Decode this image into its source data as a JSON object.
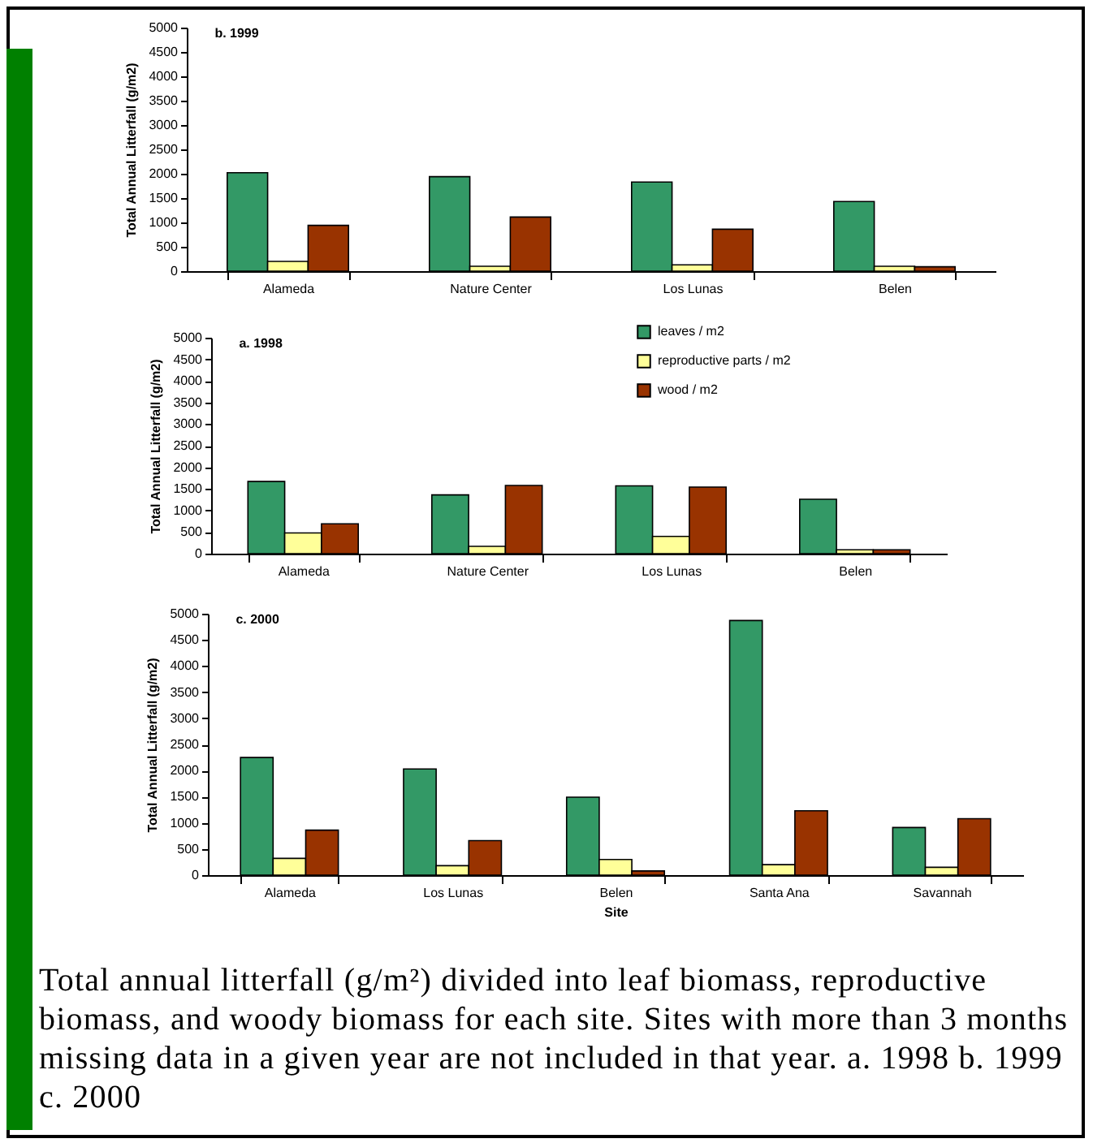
{
  "chart_data": [
    {
      "type": "bar",
      "title": "b.  1999",
      "ylabel": "Total Annual Litterfall (g/m2)",
      "categories": [
        "Alameda",
        "Nature Center",
        "Los Lunas",
        "Belen"
      ],
      "series": [
        {
          "color": "#339966",
          "values": [
            2020,
            1940,
            1830,
            1430
          ]
        },
        {
          "color": "#ffff99",
          "values": [
            200,
            100,
            130,
            100
          ]
        },
        {
          "color": "#993300",
          "values": [
            940,
            1110,
            860,
            90
          ]
        }
      ],
      "ylim": [
        0,
        5000
      ],
      "yticks": [
        0,
        500,
        1000,
        1500,
        2000,
        2500,
        3000,
        3500,
        4000,
        4500,
        5000
      ],
      "grid": false,
      "legend": false
    },
    {
      "type": "bar",
      "title": "a.  1998",
      "ylabel": "Total Annual Litterfall (g/m2)",
      "categories": [
        "Alameda",
        "Nature Center",
        "Los Lunas",
        "Belen"
      ],
      "series": [
        {
          "name": "leaves / m2",
          "color": "#339966",
          "values": [
            1670,
            1360,
            1570,
            1260
          ]
        },
        {
          "name": "reproductive parts / m2",
          "color": "#ffff99",
          "values": [
            480,
            170,
            400,
            90
          ]
        },
        {
          "name": "wood / m2",
          "color": "#993300",
          "values": [
            690,
            1580,
            1540,
            90
          ]
        }
      ],
      "ylim": [
        0,
        5000
      ],
      "yticks": [
        0,
        500,
        1000,
        1500,
        2000,
        2500,
        3000,
        3500,
        4000,
        4500,
        5000
      ],
      "grid": false,
      "legend": "top right"
    },
    {
      "type": "bar",
      "title": "c.  2000",
      "xlabel": "Site",
      "ylabel": "Total Annual Litterfall (g/m2)",
      "categories": [
        "Alameda",
        "Los Lunas",
        "Belen",
        "Santa Ana",
        "Savannah"
      ],
      "series": [
        {
          "color": "#339966",
          "values": [
            2250,
            2030,
            1490,
            4870,
            910
          ]
        },
        {
          "color": "#ffff99",
          "values": [
            320,
            180,
            300,
            200,
            150
          ]
        },
        {
          "color": "#993300",
          "values": [
            860,
            660,
            80,
            1230,
            1080
          ]
        }
      ],
      "ylim": [
        0,
        5000
      ],
      "yticks": [
        0,
        500,
        1000,
        1500,
        2000,
        2500,
        3000,
        3500,
        4000,
        4500,
        5000
      ],
      "grid": false,
      "legend": false,
      "annotations": [
        "Total annual litterfall (g/m²) divided into leaf biomass, reproductive biomass, and woody biomass for each site. Sites with more than 3 months missing data in a given year are not included in that year.  a. 1998  b. 1999 c. 2000"
      ]
    }
  ]
}
